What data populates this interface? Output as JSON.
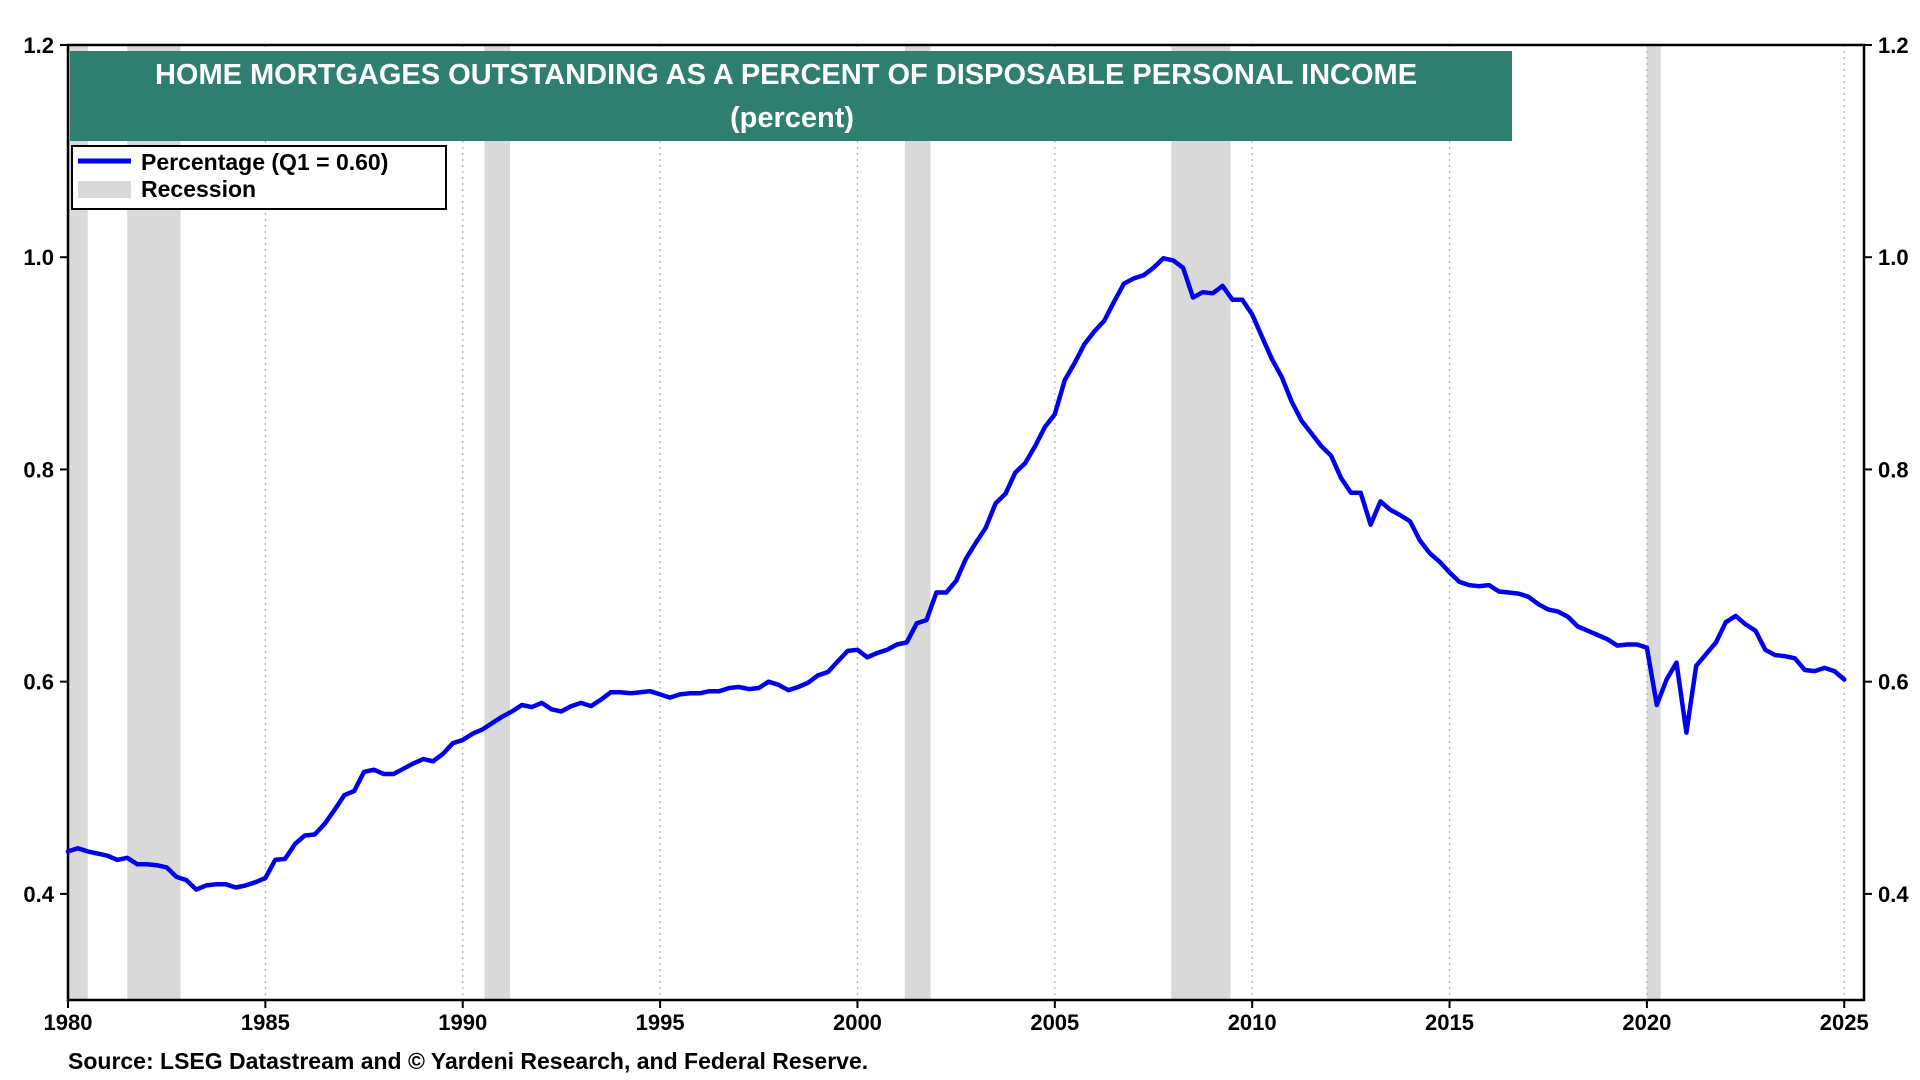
{
  "chart_data": {
    "type": "line",
    "title": "HOME MORTGAGES OUTSTANDING AS A PERCENT OF DISPOSABLE PERSONAL INCOME",
    "subtitle": "(percent)",
    "source": "Source: LSEG Datastream and © Yardeni Research, and Federal Reserve.",
    "xlim": [
      1980,
      2025.5
    ],
    "ylim": [
      0.3,
      1.2
    ],
    "x_ticks": [
      "1980",
      "1985",
      "1990",
      "1995",
      "2000",
      "2005",
      "2010",
      "2015",
      "2020",
      "2025"
    ],
    "y_ticks": [
      "0.4",
      "0.6",
      "0.8",
      "1.0",
      "1.2"
    ],
    "legend": [
      {
        "label": "Percentage (Q1 = 0.60)",
        "color": "#0000ee"
      },
      {
        "label": "Recession",
        "color": "#d9d9d9"
      }
    ],
    "legend_position": "top-left",
    "recessions": [
      [
        1980.0,
        1980.5
      ],
      [
        1981.5,
        1982.85
      ],
      [
        1990.55,
        1991.2
      ],
      [
        2001.2,
        2001.85
      ],
      [
        2007.95,
        2009.45
      ],
      [
        2020.0,
        2020.35
      ]
    ],
    "series": [
      {
        "name": "Percentage (Q1 = 0.60)",
        "color": "#0000ee",
        "points": [
          [
            1980.0,
            0.44
          ],
          [
            1980.25,
            0.443
          ],
          [
            1980.5,
            0.44
          ],
          [
            1980.75,
            0.438
          ],
          [
            1981.0,
            0.436
          ],
          [
            1981.25,
            0.432
          ],
          [
            1981.5,
            0.434
          ],
          [
            1981.75,
            0.428
          ],
          [
            1982.0,
            0.428
          ],
          [
            1982.25,
            0.427
          ],
          [
            1982.5,
            0.425
          ],
          [
            1982.75,
            0.416
          ],
          [
            1983.0,
            0.413
          ],
          [
            1983.25,
            0.404
          ],
          [
            1983.5,
            0.408
          ],
          [
            1983.75,
            0.409
          ],
          [
            1984.0,
            0.409
          ],
          [
            1984.25,
            0.406
          ],
          [
            1984.5,
            0.408
          ],
          [
            1984.75,
            0.411
          ],
          [
            1985.0,
            0.415
          ],
          [
            1985.25,
            0.432
          ],
          [
            1985.5,
            0.433
          ],
          [
            1985.75,
            0.447
          ],
          [
            1986.0,
            0.455
          ],
          [
            1986.25,
            0.456
          ],
          [
            1986.5,
            0.466
          ],
          [
            1986.75,
            0.479
          ],
          [
            1987.0,
            0.493
          ],
          [
            1987.25,
            0.497
          ],
          [
            1987.5,
            0.515
          ],
          [
            1987.75,
            0.517
          ],
          [
            1988.0,
            0.513
          ],
          [
            1988.25,
            0.513
          ],
          [
            1988.5,
            0.518
          ],
          [
            1988.75,
            0.523
          ],
          [
            1989.0,
            0.527
          ],
          [
            1989.25,
            0.525
          ],
          [
            1989.5,
            0.532
          ],
          [
            1989.75,
            0.542
          ],
          [
            1990.0,
            0.545
          ],
          [
            1990.25,
            0.551
          ],
          [
            1990.5,
            0.555
          ],
          [
            1990.75,
            0.561
          ],
          [
            1991.0,
            0.567
          ],
          [
            1991.25,
            0.572
          ],
          [
            1991.5,
            0.578
          ],
          [
            1991.75,
            0.576
          ],
          [
            1992.0,
            0.58
          ],
          [
            1992.25,
            0.574
          ],
          [
            1992.5,
            0.572
          ],
          [
            1992.75,
            0.577
          ],
          [
            1993.0,
            0.58
          ],
          [
            1993.25,
            0.577
          ],
          [
            1993.5,
            0.583
          ],
          [
            1993.75,
            0.59
          ],
          [
            1994.0,
            0.59
          ],
          [
            1994.25,
            0.589
          ],
          [
            1994.5,
            0.59
          ],
          [
            1994.75,
            0.591
          ],
          [
            1995.0,
            0.588
          ],
          [
            1995.25,
            0.585
          ],
          [
            1995.5,
            0.588
          ],
          [
            1995.75,
            0.589
          ],
          [
            1996.0,
            0.589
          ],
          [
            1996.25,
            0.591
          ],
          [
            1996.5,
            0.591
          ],
          [
            1996.75,
            0.594
          ],
          [
            1997.0,
            0.595
          ],
          [
            1997.25,
            0.593
          ],
          [
            1997.5,
            0.594
          ],
          [
            1997.75,
            0.6
          ],
          [
            1998.0,
            0.597
          ],
          [
            1998.25,
            0.592
          ],
          [
            1998.5,
            0.595
          ],
          [
            1998.75,
            0.599
          ],
          [
            1999.0,
            0.606
          ],
          [
            1999.25,
            0.609
          ],
          [
            1999.5,
            0.619
          ],
          [
            1999.75,
            0.629
          ],
          [
            2000.0,
            0.63
          ],
          [
            2000.25,
            0.623
          ],
          [
            2000.5,
            0.627
          ],
          [
            2000.75,
            0.63
          ],
          [
            2001.0,
            0.635
          ],
          [
            2001.25,
            0.637
          ],
          [
            2001.5,
            0.655
          ],
          [
            2001.75,
            0.658
          ],
          [
            2002.0,
            0.684
          ],
          [
            2002.25,
            0.684
          ],
          [
            2002.5,
            0.695
          ],
          [
            2002.75,
            0.716
          ],
          [
            2003.0,
            0.731
          ],
          [
            2003.25,
            0.745
          ],
          [
            2003.5,
            0.768
          ],
          [
            2003.75,
            0.777
          ],
          [
            2004.0,
            0.797
          ],
          [
            2004.25,
            0.806
          ],
          [
            2004.5,
            0.822
          ],
          [
            2004.75,
            0.84
          ],
          [
            2005.0,
            0.852
          ],
          [
            2005.25,
            0.884
          ],
          [
            2005.5,
            0.9
          ],
          [
            2005.75,
            0.918
          ],
          [
            2006.0,
            0.93
          ],
          [
            2006.25,
            0.94
          ],
          [
            2006.5,
            0.958
          ],
          [
            2006.75,
            0.975
          ],
          [
            2007.0,
            0.98
          ],
          [
            2007.25,
            0.983
          ],
          [
            2007.5,
            0.99
          ],
          [
            2007.75,
            0.999
          ],
          [
            2008.0,
            0.997
          ],
          [
            2008.25,
            0.99
          ],
          [
            2008.5,
            0.962
          ],
          [
            2008.75,
            0.967
          ],
          [
            2009.0,
            0.966
          ],
          [
            2009.25,
            0.973
          ],
          [
            2009.5,
            0.96
          ],
          [
            2009.75,
            0.96
          ],
          [
            2010.0,
            0.946
          ],
          [
            2010.25,
            0.925
          ],
          [
            2010.5,
            0.904
          ],
          [
            2010.75,
            0.887
          ],
          [
            2011.0,
            0.864
          ],
          [
            2011.25,
            0.846
          ],
          [
            2011.5,
            0.834
          ],
          [
            2011.75,
            0.822
          ],
          [
            2012.0,
            0.813
          ],
          [
            2012.25,
            0.792
          ],
          [
            2012.5,
            0.778
          ],
          [
            2012.75,
            0.778
          ],
          [
            2013.0,
            0.748
          ],
          [
            2013.25,
            0.77
          ],
          [
            2013.5,
            0.762
          ],
          [
            2013.75,
            0.757
          ],
          [
            2014.0,
            0.751
          ],
          [
            2014.25,
            0.733
          ],
          [
            2014.5,
            0.721
          ],
          [
            2014.75,
            0.713
          ],
          [
            2015.0,
            0.703
          ],
          [
            2015.25,
            0.694
          ],
          [
            2015.5,
            0.691
          ],
          [
            2015.75,
            0.69
          ],
          [
            2016.0,
            0.691
          ],
          [
            2016.25,
            0.685
          ],
          [
            2016.5,
            0.684
          ],
          [
            2016.75,
            0.683
          ],
          [
            2017.0,
            0.68
          ],
          [
            2017.25,
            0.673
          ],
          [
            2017.5,
            0.668
          ],
          [
            2017.75,
            0.666
          ],
          [
            2018.0,
            0.661
          ],
          [
            2018.25,
            0.652
          ],
          [
            2018.5,
            0.648
          ],
          [
            2018.75,
            0.644
          ],
          [
            2019.0,
            0.64
          ],
          [
            2019.25,
            0.634
          ],
          [
            2019.5,
            0.635
          ],
          [
            2019.75,
            0.635
          ],
          [
            2020.0,
            0.632
          ],
          [
            2020.25,
            0.578
          ],
          [
            2020.5,
            0.602
          ],
          [
            2020.75,
            0.618
          ],
          [
            2021.0,
            0.552
          ],
          [
            2021.25,
            0.615
          ],
          [
            2021.5,
            0.626
          ],
          [
            2021.75,
            0.637
          ],
          [
            2022.0,
            0.656
          ],
          [
            2022.25,
            0.662
          ],
          [
            2022.5,
            0.654
          ],
          [
            2022.75,
            0.648
          ],
          [
            2023.0,
            0.63
          ],
          [
            2023.25,
            0.625
          ],
          [
            2023.5,
            0.624
          ],
          [
            2023.75,
            0.622
          ],
          [
            2024.0,
            0.611
          ],
          [
            2024.25,
            0.61
          ],
          [
            2024.5,
            0.613
          ],
          [
            2024.75,
            0.61
          ],
          [
            2025.0,
            0.602
          ]
        ]
      }
    ]
  }
}
